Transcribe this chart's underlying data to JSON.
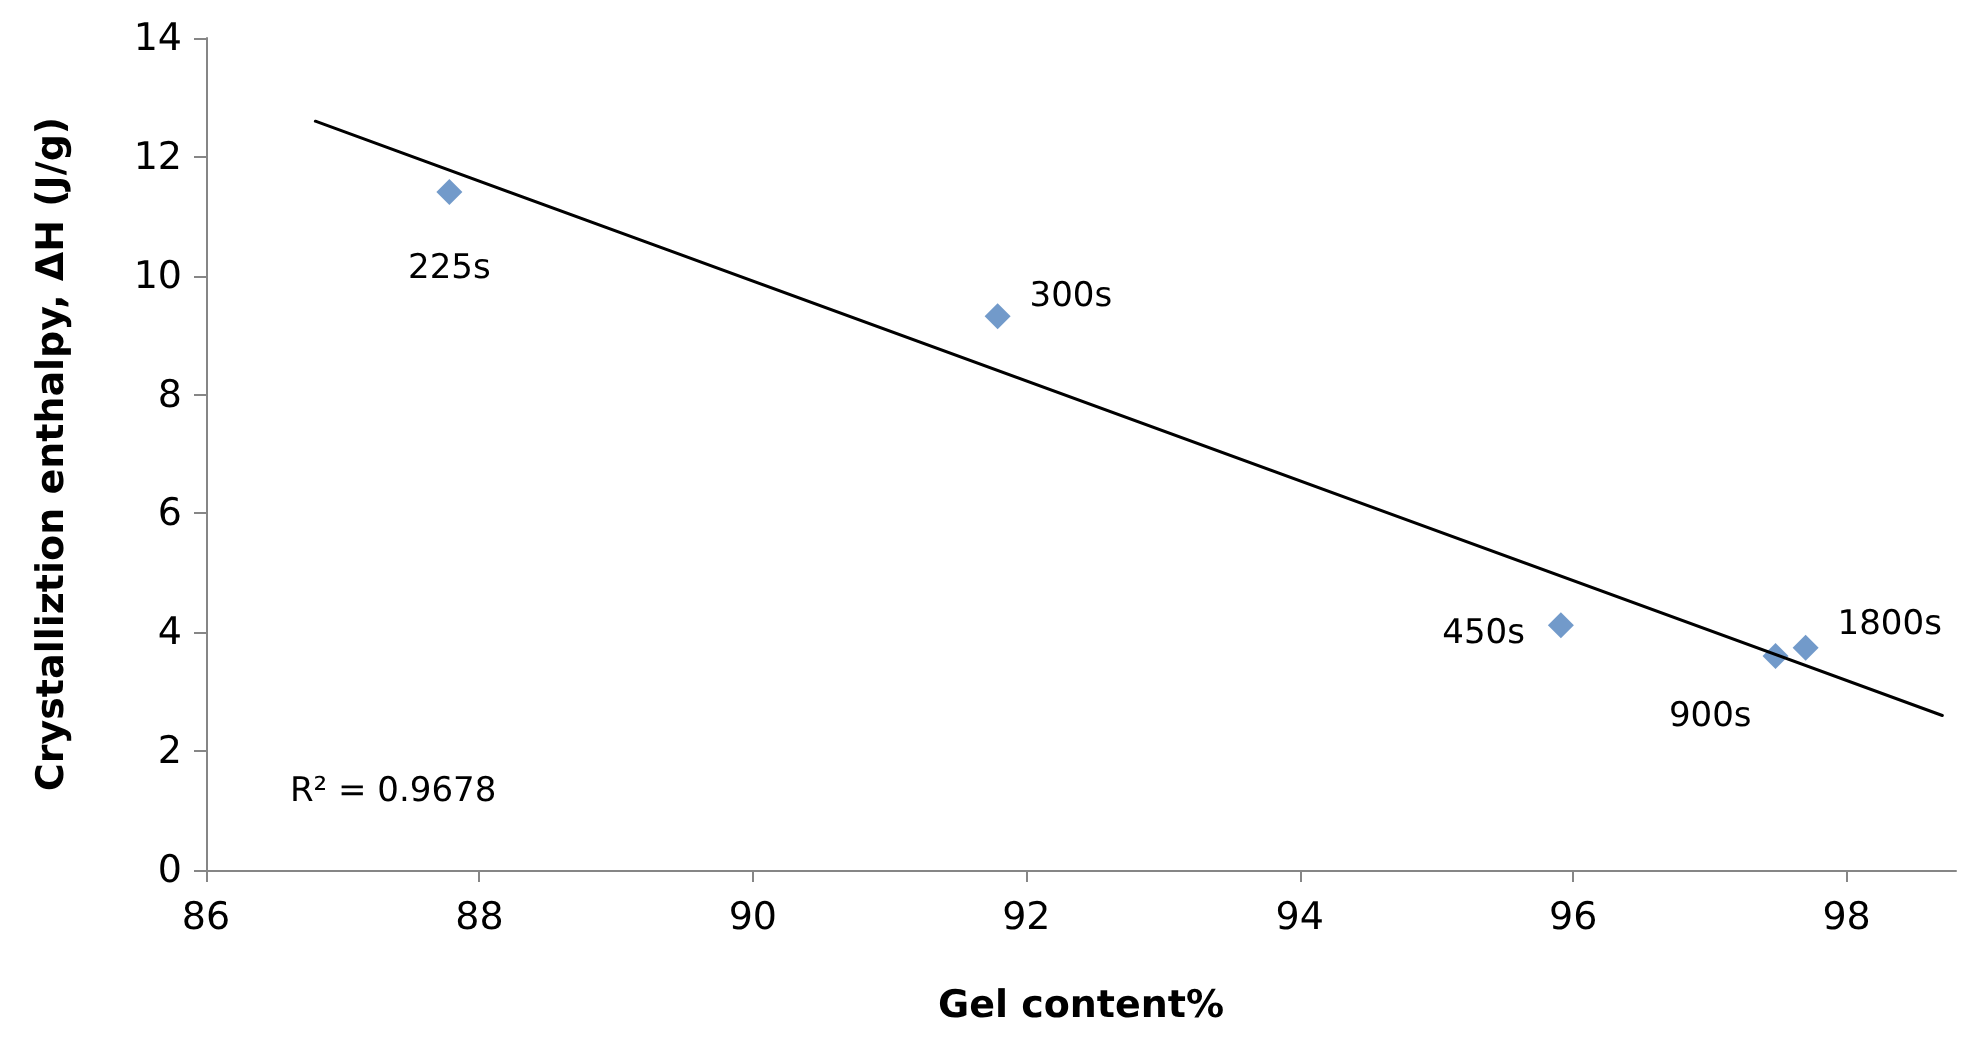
{
  "chart_data": {
    "type": "scatter",
    "xlabel": "Gel content%",
    "ylabel": "Crystalliztion enthalpy, ΔH (J/g)",
    "series": [
      {
        "color": "#4f81bd",
        "marker": "diamond",
        "x": [
          87.78,
          91.79,
          95.91,
          97.48,
          97.7
        ],
        "values": [
          11.41,
          9.32,
          4.12,
          3.6,
          3.74
        ]
      },
      {
        "type": "line",
        "color": "#000000",
        "marker": "none",
        "x": [
          86.8,
          98.7
        ],
        "values": [
          12.6,
          2.6
        ]
      }
    ],
    "xlim": [
      86,
      98.8
    ],
    "xticks": [
      86,
      88,
      90,
      92,
      94,
      96,
      98
    ],
    "ylim": [
      0,
      14
    ],
    "yticks": [
      0,
      2,
      4,
      6,
      8,
      10,
      12,
      14
    ],
    "grid": false,
    "annotations": [
      {
        "text": "225s",
        "x": 87.78,
        "y": 11.41
      },
      {
        "text": "300s",
        "x": 91.79,
        "y": 9.32
      },
      {
        "text": "450s",
        "x": 95.91,
        "y": 4.12
      },
      {
        "text": "900s",
        "x": 97.48,
        "y": 3.6
      },
      {
        "text": "1800s",
        "x": 97.7,
        "y": 3.74
      },
      "R² = 0.9678"
    ]
  }
}
